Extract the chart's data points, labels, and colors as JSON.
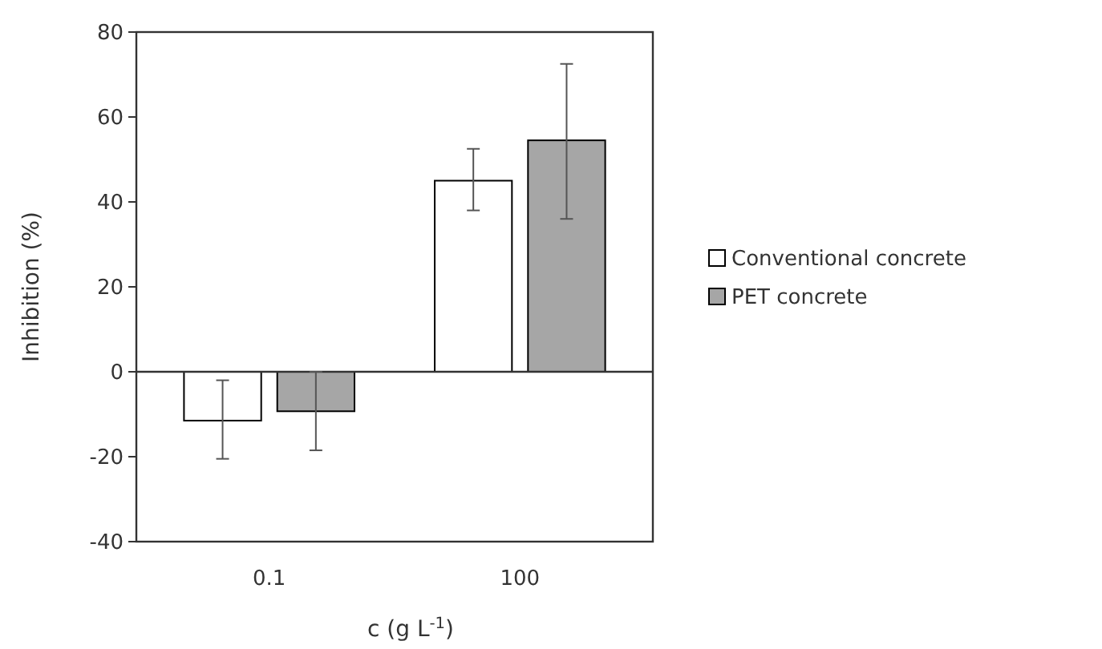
{
  "chart_data": {
    "type": "bar",
    "xlabel": "c (g L$^{-1}$)",
    "ylabel": "Inhibition (%)",
    "categories": [
      "0.1",
      "100"
    ],
    "series": [
      {
        "name": "Conventional concrete",
        "color": "#ffffff",
        "values": [
          -11.5,
          45
        ],
        "errors": [
          [
            -20.5,
            -2
          ],
          [
            38,
            52.5
          ]
        ]
      },
      {
        "name": "PET concrete",
        "color": "#a6a6a6",
        "values": [
          -9.3,
          54.5
        ],
        "errors": [
          [
            -18.5,
            0
          ],
          [
            36,
            72.5
          ]
        ]
      }
    ],
    "ylim": [
      -40,
      80
    ],
    "yticks": [
      -40,
      -20,
      0,
      20,
      40,
      60,
      80
    ],
    "legend": "right"
  }
}
